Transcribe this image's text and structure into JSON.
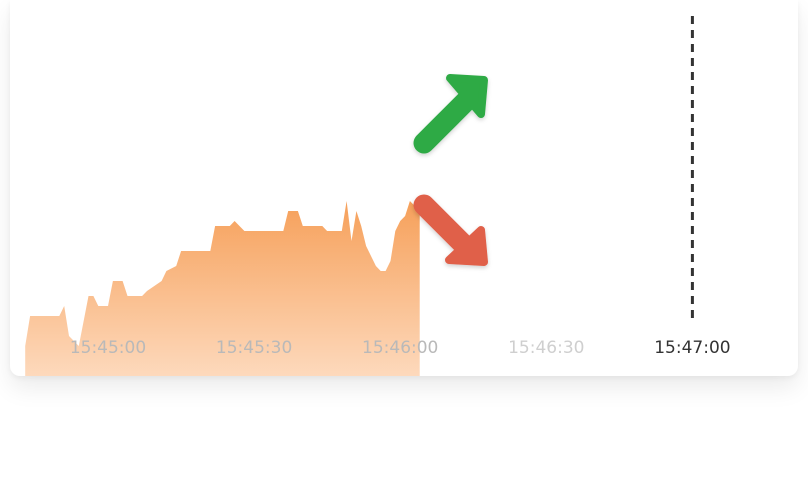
{
  "chart_data": {
    "type": "area",
    "x_unit": "time (HH:MM:SS)",
    "tick_labels": [
      "15:45:00",
      "15:45:30",
      "15:46:00",
      "15:46:30",
      "15:47:00"
    ],
    "ticks_seconds": [
      0,
      30,
      60,
      90,
      120
    ],
    "highlighted_tick": "15:47:00",
    "expiry_line_at": "15:47:00",
    "grid": false,
    "legend": "none",
    "series": [
      {
        "color": "#f6a05a",
        "points": [
          [
            -17,
            0.3
          ],
          [
            -16,
            0.6
          ],
          [
            -10,
            0.6
          ],
          [
            -9,
            0.7
          ],
          [
            -8,
            0.4
          ],
          [
            -6,
            0.3
          ],
          [
            -4,
            0.8
          ],
          [
            -3,
            0.8
          ],
          [
            -2,
            0.7
          ],
          [
            0,
            0.7
          ],
          [
            1,
            0.95
          ],
          [
            3,
            0.95
          ],
          [
            4,
            0.8
          ],
          [
            7,
            0.8
          ],
          [
            8,
            0.85
          ],
          [
            11,
            0.95
          ],
          [
            12,
            1.05
          ],
          [
            14,
            1.1
          ],
          [
            15,
            1.25
          ],
          [
            19,
            1.25
          ],
          [
            21,
            1.25
          ],
          [
            22,
            1.5
          ],
          [
            25,
            1.5
          ],
          [
            26,
            1.55
          ],
          [
            28,
            1.45
          ],
          [
            36,
            1.45
          ],
          [
            37,
            1.65
          ],
          [
            39,
            1.65
          ],
          [
            40,
            1.5
          ],
          [
            44,
            1.5
          ],
          [
            45,
            1.45
          ],
          [
            48,
            1.45
          ],
          [
            49,
            1.75
          ],
          [
            50,
            1.35
          ],
          [
            51,
            1.65
          ],
          [
            52,
            1.5
          ],
          [
            53,
            1.3
          ],
          [
            55,
            1.1
          ],
          [
            56,
            1.05
          ],
          [
            57,
            1.05
          ],
          [
            58,
            1.15
          ],
          [
            59,
            1.45
          ],
          [
            60,
            1.55
          ],
          [
            61,
            1.6
          ],
          [
            62,
            1.75
          ],
          [
            63,
            1.7
          ],
          [
            64,
            1.75
          ]
        ]
      }
    ],
    "ylim": [
      0,
      2.0
    ]
  },
  "arrows": {
    "up": {
      "icon": "arrow-up-right-icon",
      "color": "#2eaa44"
    },
    "down": {
      "icon": "arrow-down-right-icon",
      "color": "#e0604a"
    }
  },
  "colors": {
    "area_top": "#f6a05a",
    "area_bottom": "#fdd9bc",
    "tick_past": "#b9b9b9",
    "tick_future": "#cfcfcf",
    "tick_highlight": "#333333"
  }
}
